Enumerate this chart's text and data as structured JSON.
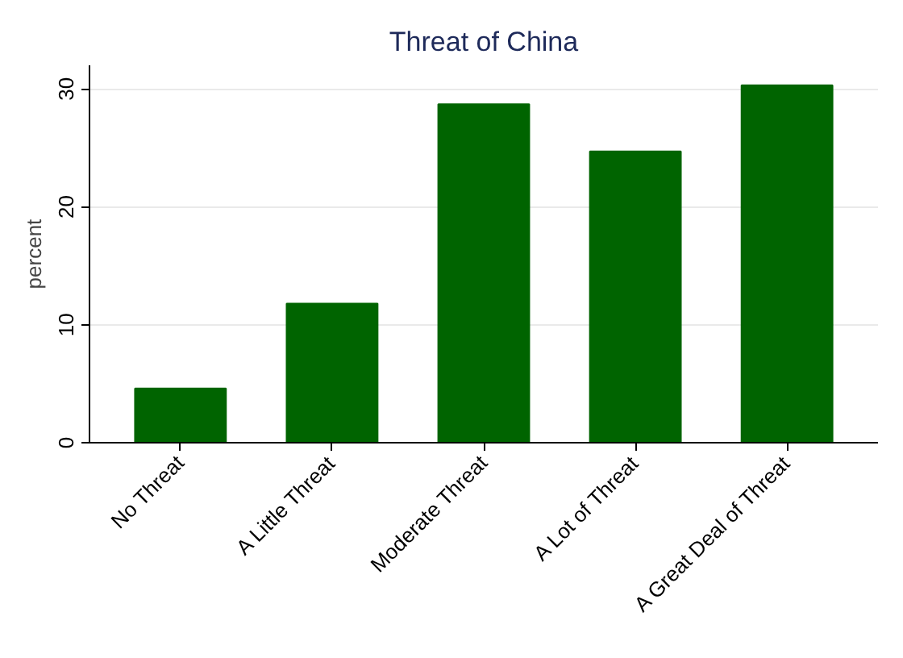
{
  "chart_data": {
    "type": "bar",
    "title": "Threat of China",
    "ylabel": "percent",
    "categories": [
      "No Threat",
      "A Little Threat",
      "Moderate Threat",
      "A Lot of Threat",
      "A Great Deal of Threat"
    ],
    "values": [
      4.6,
      11.8,
      28.7,
      24.7,
      30.3
    ],
    "color": "#006400",
    "ylim": [
      0,
      32
    ],
    "yticks": [
      0,
      10,
      20,
      30
    ],
    "grid": "y"
  }
}
